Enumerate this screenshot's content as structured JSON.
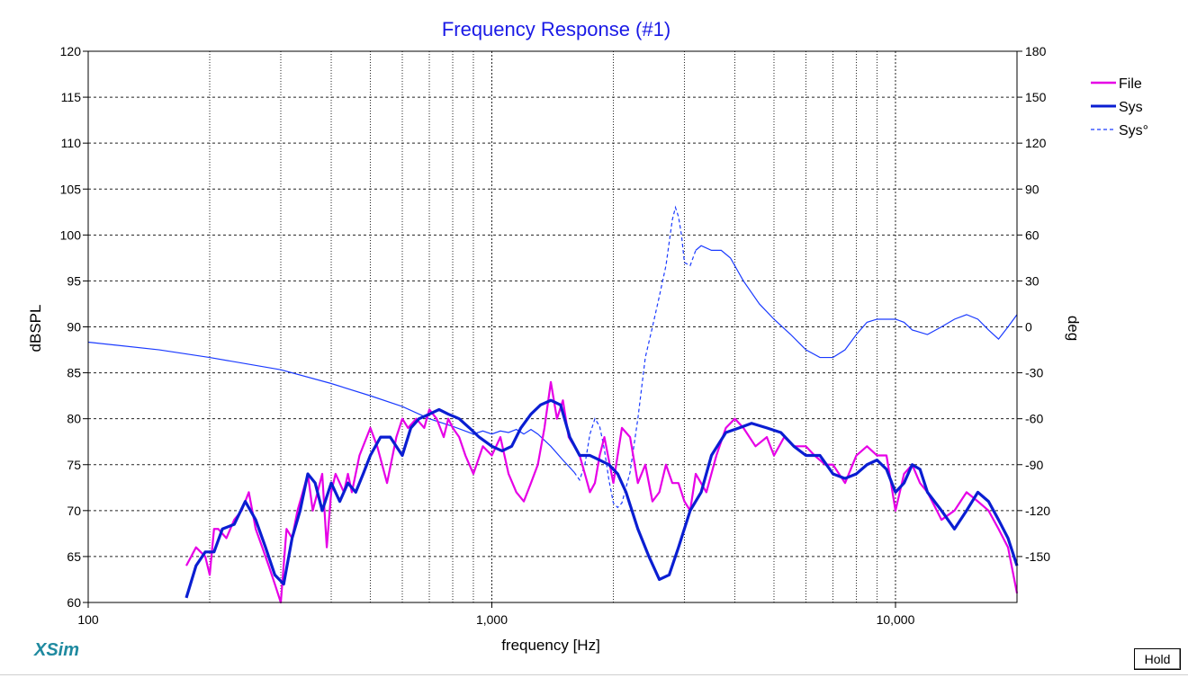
{
  "app": {
    "logo_text": "XSim",
    "hold_label": "Hold"
  },
  "chart_data": {
    "type": "line",
    "title": "Frequency Response (#1)",
    "xlabel": "frequency [Hz]",
    "ylabel": "dBSPL",
    "y2label": "deg",
    "xscale": "log",
    "xlim": [
      100,
      20000
    ],
    "ylim": [
      60,
      120
    ],
    "y2lim": [
      -180,
      180
    ],
    "grid": true,
    "legend_position": "top-right",
    "x_ticks": [
      100,
      1000,
      10000
    ],
    "x_tick_labels": [
      "100",
      "1,000",
      "10,000"
    ],
    "y_ticks": [
      60,
      65,
      70,
      75,
      80,
      85,
      90,
      95,
      100,
      105,
      110,
      115,
      120
    ],
    "y2_ticks": [
      -150,
      -120,
      -90,
      -60,
      -30,
      0,
      30,
      60,
      90,
      120,
      150,
      180
    ],
    "colors": {
      "file": "#e600e6",
      "sys": "#0a1ed2",
      "sys_phase": "#1a3aff",
      "grid": "#222222",
      "title": "#1a1ae6"
    },
    "series": [
      {
        "name": "File",
        "axis": "left",
        "style": "solid-thin",
        "x": [
          175,
          185,
          195,
          200,
          205,
          210,
          220,
          230,
          240,
          250,
          260,
          270,
          280,
          290,
          300,
          310,
          320,
          330,
          340,
          350,
          360,
          370,
          380,
          390,
          400,
          410,
          420,
          430,
          440,
          450,
          470,
          500,
          520,
          550,
          580,
          600,
          620,
          650,
          680,
          700,
          730,
          760,
          780,
          800,
          830,
          860,
          900,
          950,
          1000,
          1050,
          1100,
          1150,
          1200,
          1250,
          1300,
          1350,
          1400,
          1450,
          1500,
          1550,
          1600,
          1650,
          1700,
          1750,
          1800,
          1850,
          1900,
          2000,
          2100,
          2200,
          2300,
          2400,
          2500,
          2600,
          2700,
          2800,
          2900,
          3000,
          3100,
          3200,
          3400,
          3600,
          3800,
          4000,
          4200,
          4500,
          4800,
          5000,
          5300,
          5600,
          6000,
          6300,
          6700,
          7000,
          7500,
          8000,
          8500,
          9000,
          9500,
          10000,
          10500,
          11000,
          11500,
          12000,
          13000,
          14000,
          15000,
          16000,
          17000,
          18000,
          19000,
          20000
        ],
        "values": [
          64,
          66,
          65,
          63,
          68,
          68,
          67,
          69,
          70,
          72,
          68,
          66,
          64,
          62,
          60,
          68,
          67,
          70,
          72,
          74,
          70,
          72,
          74,
          66,
          72,
          74,
          73,
          72,
          74,
          72,
          76,
          79,
          77,
          73,
          78,
          80,
          79,
          80,
          79,
          81,
          80,
          78,
          80,
          79,
          78,
          76,
          74,
          77,
          76,
          78,
          74,
          72,
          71,
          73,
          75,
          79,
          84,
          80,
          82,
          78,
          77,
          76,
          74,
          72,
          73,
          76,
          78,
          73,
          79,
          78,
          73,
          75,
          71,
          72,
          75,
          73,
          73,
          71,
          70,
          74,
          72,
          76,
          79,
          80,
          79,
          77,
          78,
          76,
          78,
          77,
          77,
          76,
          75,
          75,
          73,
          76,
          77,
          76,
          76,
          70,
          74,
          75,
          73,
          72,
          69,
          70,
          72,
          71,
          70,
          68,
          66,
          61
        ]
      },
      {
        "name": "Sys",
        "axis": "left",
        "style": "solid-thick",
        "x": [
          175,
          185,
          195,
          205,
          215,
          230,
          245,
          260,
          275,
          290,
          305,
          320,
          335,
          350,
          365,
          380,
          400,
          420,
          440,
          460,
          480,
          500,
          530,
          560,
          600,
          630,
          660,
          700,
          740,
          780,
          830,
          880,
          930,
          1000,
          1060,
          1120,
          1180,
          1250,
          1320,
          1400,
          1480,
          1560,
          1650,
          1750,
          1850,
          1950,
          2050,
          2150,
          2300,
          2450,
          2600,
          2750,
          2900,
          3100,
          3300,
          3500,
          3800,
          4100,
          4400,
          4800,
          5200,
          5600,
          6000,
          6500,
          7000,
          7500,
          8000,
          8500,
          9000,
          9500,
          10000,
          10500,
          11000,
          11500,
          12000,
          13000,
          14000,
          15000,
          16000,
          17000,
          18000,
          19000,
          20000
        ],
        "values": [
          60.5,
          64,
          65.5,
          65.5,
          68,
          68.5,
          71,
          69,
          66,
          63,
          62,
          67,
          70,
          74,
          73,
          70,
          73,
          71,
          73,
          72,
          74,
          76,
          78,
          78,
          76,
          79,
          80,
          80.5,
          81,
          80.5,
          80,
          79,
          78,
          77,
          76.5,
          77,
          79,
          80.5,
          81.5,
          82,
          81.5,
          78,
          76,
          76,
          75.5,
          75,
          74,
          72,
          68,
          65,
          62.5,
          63,
          66,
          70,
          72,
          76,
          78.5,
          79,
          79.5,
          79,
          78.5,
          77,
          76,
          76,
          74,
          73.5,
          74,
          75,
          75.5,
          74.5,
          72,
          73,
          75,
          74.5,
          72,
          70,
          68,
          70,
          72,
          71,
          69,
          67,
          64
        ]
      },
      {
        "name": "Sys°",
        "axis": "right",
        "style": "thin-phase",
        "x": [
          100,
          150,
          200,
          300,
          400,
          500,
          600,
          700,
          800,
          900,
          950,
          1000,
          1050,
          1100,
          1150,
          1200,
          1250,
          1300,
          1400,
          1500,
          1600,
          1650,
          1700,
          1750,
          1800,
          1850,
          1900,
          1950,
          2000,
          2050,
          2100,
          2200,
          2300,
          2400,
          2500,
          2600,
          2700,
          2800,
          2850,
          2900,
          2950,
          3000,
          3100,
          3200,
          3300,
          3500,
          3700,
          3900,
          4200,
          4600,
          5000,
          5500,
          6000,
          6500,
          7000,
          7500,
          8000,
          8500,
          9000,
          9500,
          10000,
          10500,
          11000,
          12000,
          13000,
          14000,
          15000,
          16000,
          17000,
          18000,
          19000,
          20000
        ],
        "values": [
          -10,
          -15,
          -20,
          -28,
          -37,
          -45,
          -52,
          -60,
          -65,
          -70,
          -68,
          -70,
          -68,
          -69,
          -67,
          -70,
          -67,
          -70,
          -78,
          -87,
          -95,
          -100,
          -90,
          -70,
          -60,
          -65,
          -80,
          -100,
          -115,
          -118,
          -115,
          -95,
          -60,
          -20,
          0,
          20,
          40,
          70,
          78,
          72,
          60,
          42,
          40,
          50,
          53,
          50,
          50,
          45,
          30,
          15,
          5,
          -5,
          -15,
          -20,
          -20,
          -15,
          -5,
          3,
          5,
          5,
          5,
          3,
          -2,
          -5,
          0,
          5,
          8,
          5,
          -2,
          -8,
          0,
          8
        ]
      }
    ]
  }
}
